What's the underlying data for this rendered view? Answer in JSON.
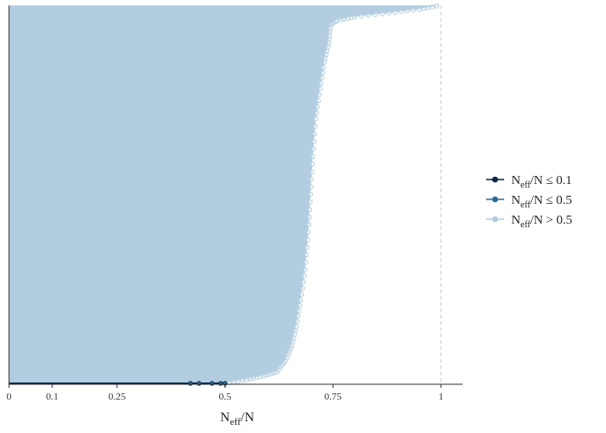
{
  "chart_data": {
    "type": "line",
    "title": "",
    "xlabel": {
      "main": "N",
      "sub": "eff",
      "tail": "/N"
    },
    "ylabel": "",
    "xlim": [
      0,
      1.05
    ],
    "x_ticks": [
      {
        "value": 0,
        "label": "0"
      },
      {
        "value": 0.1,
        "label": "0.1"
      },
      {
        "value": 0.25,
        "label": "0.25"
      },
      {
        "value": 0.5,
        "label": "0.5"
      },
      {
        "value": 0.75,
        "label": "0.75"
      },
      {
        "value": 1,
        "label": "1"
      }
    ],
    "reference_line_x": 1,
    "grid": false,
    "legend_position": "right",
    "legend": [
      {
        "main": "N",
        "sub": "eff",
        "tail": "/N ≤ 0.1",
        "color": "#0b2a4a"
      },
      {
        "main": "N",
        "sub": "eff",
        "tail": "/N ≤ 0.5",
        "color": "#2f6e9a"
      },
      {
        "main": "N",
        "sub": "eff",
        "tail": "/N > 0.5",
        "color": "#b3cde0"
      }
    ],
    "colors": {
      "low": "#0b2a4a",
      "mid": "#2f6e9a",
      "high": "#b3cde0",
      "axis": "#333333",
      "refline": "#c8c8c8"
    },
    "series": [
      {
        "group": "high",
        "sorted_ratio_profile": [
          {
            "q": 0.0,
            "x": 0.5
          },
          {
            "q": 0.01,
            "x": 0.55
          },
          {
            "q": 0.02,
            "x": 0.59
          },
          {
            "q": 0.03,
            "x": 0.62
          },
          {
            "q": 0.06,
            "x": 0.64
          },
          {
            "q": 0.1,
            "x": 0.655
          },
          {
            "q": 0.15,
            "x": 0.665
          },
          {
            "q": 0.22,
            "x": 0.675
          },
          {
            "q": 0.3,
            "x": 0.685
          },
          {
            "q": 0.4,
            "x": 0.693
          },
          {
            "q": 0.5,
            "x": 0.698
          },
          {
            "q": 0.6,
            "x": 0.703
          },
          {
            "q": 0.7,
            "x": 0.71
          },
          {
            "q": 0.78,
            "x": 0.72
          },
          {
            "q": 0.85,
            "x": 0.73
          },
          {
            "q": 0.9,
            "x": 0.74
          },
          {
            "q": 0.95,
            "x": 0.745
          },
          {
            "q": 0.96,
            "x": 0.76
          },
          {
            "q": 0.97,
            "x": 0.8
          },
          {
            "q": 0.98,
            "x": 0.88
          },
          {
            "q": 0.99,
            "x": 0.95
          },
          {
            "q": 1.0,
            "x": 1.0
          }
        ]
      },
      {
        "group": "mid",
        "points_x": [
          0.42,
          0.44,
          0.47,
          0.49,
          0.5
        ]
      }
    ]
  }
}
